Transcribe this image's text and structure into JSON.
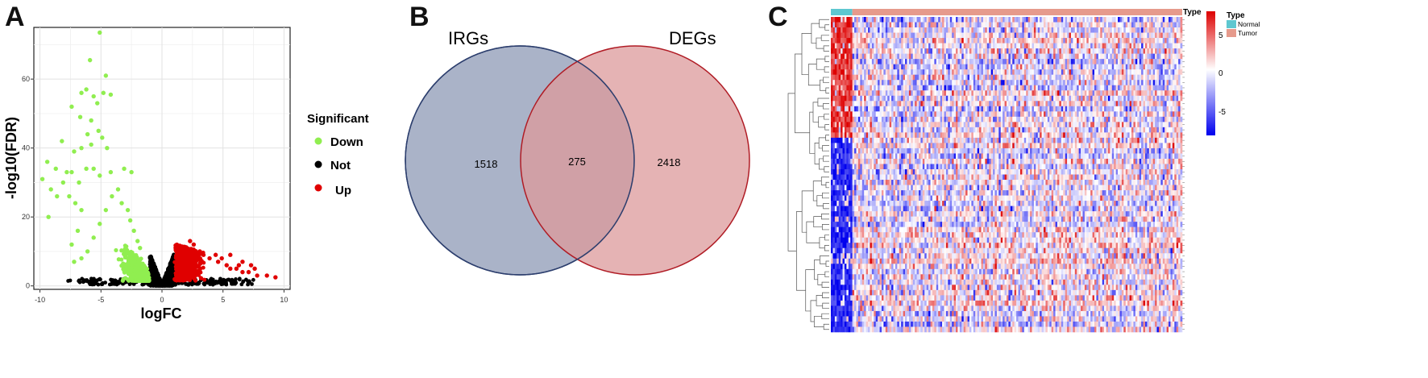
{
  "panels": {
    "a": "A",
    "b": "B",
    "c": "C"
  },
  "chart_data": [
    {
      "type": "scatter",
      "panel": "A",
      "xlabel": "logFC",
      "ylabel": "-log10(FDR)",
      "xlim": [
        -10.5,
        10.5
      ],
      "ylim": [
        -1,
        75
      ],
      "xticks": [
        -10,
        -5,
        0,
        5,
        10
      ],
      "yticks": [
        0,
        20,
        40,
        60
      ],
      "grid": true,
      "legend": {
        "title": "Significant",
        "placement": "right",
        "entries": [
          {
            "label": "Down",
            "color": "#90ee50"
          },
          {
            "label": "Not",
            "color": "#000000"
          },
          {
            "label": "Up",
            "color": "#e00000"
          }
        ]
      },
      "series": [
        {
          "name": "Down",
          "color": "#90ee50",
          "points": [
            [
              -5.1,
              73.5
            ],
            [
              -5.9,
              65.5
            ],
            [
              -4.6,
              61
            ],
            [
              -6.2,
              57
            ],
            [
              -6.6,
              56
            ],
            [
              -5.6,
              55
            ],
            [
              -4.8,
              56
            ],
            [
              -4.2,
              55.5
            ],
            [
              -5.3,
              53
            ],
            [
              -7.4,
              52
            ],
            [
              -6.7,
              49
            ],
            [
              -5.8,
              48
            ],
            [
              -5.2,
              45
            ],
            [
              -6.1,
              44
            ],
            [
              -4.9,
              43
            ],
            [
              -5.8,
              41
            ],
            [
              -4.5,
              40
            ],
            [
              -6.6,
              40
            ],
            [
              -8.2,
              42
            ],
            [
              -7.2,
              39
            ],
            [
              -9.4,
              36
            ],
            [
              -8.7,
              34
            ],
            [
              -7.8,
              33
            ],
            [
              -7.4,
              33
            ],
            [
              -6.2,
              34
            ],
            [
              -5.6,
              34
            ],
            [
              -5.1,
              32
            ],
            [
              -4.2,
              33
            ],
            [
              -3.1,
              34
            ],
            [
              -2.5,
              33
            ],
            [
              -6.8,
              30
            ],
            [
              -9.8,
              31
            ],
            [
              -8.1,
              30
            ],
            [
              -9.1,
              28
            ],
            [
              -8.6,
              26
            ],
            [
              -7.6,
              26
            ],
            [
              -7.1,
              24
            ],
            [
              -6.6,
              22
            ],
            [
              -9.3,
              20
            ],
            [
              -6.9,
              16
            ],
            [
              -7.4,
              12
            ],
            [
              -6.1,
              10
            ],
            [
              -6.6,
              8
            ],
            [
              -7.2,
              7
            ],
            [
              -5.6,
              14
            ],
            [
              -5.1,
              18
            ],
            [
              -4.6,
              22
            ],
            [
              -4.1,
              26
            ],
            [
              -3.6,
              28
            ],
            [
              -3.3,
              24
            ],
            [
              -2.8,
              22
            ],
            [
              -2.6,
              19
            ],
            [
              -2.3,
              16
            ],
            [
              -2.0,
              13
            ],
            [
              -1.8,
              11
            ]
          ]
        },
        {
          "name": "Up",
          "color": "#e00000",
          "points": [
            [
              1.2,
              10
            ],
            [
              1.8,
              9
            ],
            [
              2.3,
              13
            ],
            [
              2.6,
              12
            ],
            [
              3.1,
              10
            ],
            [
              3.4,
              9
            ],
            [
              3.9,
              8
            ],
            [
              4.4,
              9
            ],
            [
              4.6,
              7
            ],
            [
              5.3,
              6
            ],
            [
              5.6,
              5
            ],
            [
              6.1,
              5
            ],
            [
              6.6,
              4
            ],
            [
              7.1,
              4
            ],
            [
              7.8,
              3
            ],
            [
              8.6,
              3
            ],
            [
              9.3,
              2.5
            ],
            [
              5.6,
              9
            ],
            [
              6.6,
              7
            ],
            [
              7.3,
              6
            ],
            [
              4.9,
              8
            ],
            [
              6.3,
              6
            ],
            [
              7.6,
              5
            ]
          ]
        }
      ]
    },
    {
      "type": "venn",
      "panel": "B",
      "sets": [
        {
          "name": "IRGs",
          "only": "1518",
          "color": "#aab3c8"
        },
        {
          "name": "DEGs",
          "only": "2418",
          "color": "#dc9a9b"
        }
      ],
      "intersection": "275"
    },
    {
      "type": "heatmap",
      "panel": "C",
      "annotation": {
        "label": "Type",
        "legend_title": "Type",
        "groups": [
          {
            "label": "Normal",
            "color": "#5ec7d0",
            "fraction": 0.06
          },
          {
            "label": "Tumor",
            "color": "#e69a8c",
            "fraction": 0.94
          }
        ]
      },
      "colorbar": {
        "ticks": [
          5,
          0,
          -5
        ],
        "low": "#0000ee",
        "mid": "#ffffff",
        "high": "#dd0000",
        "range": [
          -8,
          8
        ]
      },
      "rows": 60,
      "cols": 180
    }
  ]
}
